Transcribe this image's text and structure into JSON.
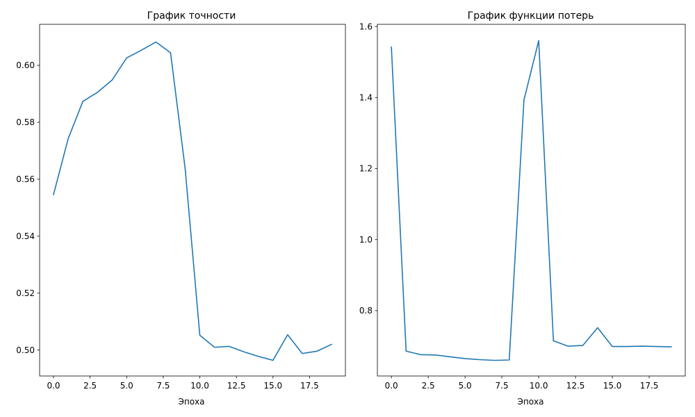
{
  "chart_data": [
    {
      "type": "line",
      "title": "График точности",
      "xlabel": "Эпоха",
      "ylabel": "",
      "xlim": [
        -0.95,
        19.95
      ],
      "ylim": [
        0.4909,
        0.6144
      ],
      "xticks": [
        0.0,
        2.5,
        5.0,
        7.5,
        10.0,
        12.5,
        15.0,
        17.5
      ],
      "yticks": [
        0.5,
        0.52,
        0.54,
        0.56,
        0.58,
        0.6
      ],
      "xtick_labels": [
        "0.0",
        "2.5",
        "5.0",
        "7.5",
        "10.0",
        "12.5",
        "15.0",
        "17.5"
      ],
      "ytick_labels": [
        "0.50",
        "0.52",
        "0.54",
        "0.56",
        "0.58",
        "0.60"
      ],
      "grid": false,
      "color": "#1f77b4",
      "x": [
        0,
        1,
        2,
        3,
        4,
        5,
        6,
        7,
        8,
        9,
        10,
        11,
        12,
        13,
        14,
        15,
        16,
        17,
        18,
        19
      ],
      "y": [
        0.5546,
        0.5742,
        0.5873,
        0.5905,
        0.5948,
        0.6026,
        0.6053,
        0.6082,
        0.6044,
        0.5636,
        0.5052,
        0.501,
        0.5013,
        0.4994,
        0.4978,
        0.4964,
        0.5054,
        0.4988,
        0.4996,
        0.502
      ]
    },
    {
      "type": "line",
      "title": "График функции потерь",
      "xlabel": "Эпоха",
      "ylabel": "",
      "xlim": [
        -0.95,
        19.95
      ],
      "ylim": [
        0.616,
        1.606
      ],
      "xticks": [
        0.0,
        2.5,
        5.0,
        7.5,
        10.0,
        12.5,
        15.0,
        17.5
      ],
      "yticks": [
        0.8,
        1.0,
        1.2,
        1.4,
        1.6
      ],
      "xtick_labels": [
        "0.0",
        "2.5",
        "5.0",
        "7.5",
        "10.0",
        "12.5",
        "15.0",
        "17.5"
      ],
      "ytick_labels": [
        "0.8",
        "1.0",
        "1.2",
        "1.4",
        "1.6"
      ],
      "grid": false,
      "color": "#1f77b4",
      "x": [
        0,
        1,
        2,
        3,
        4,
        5,
        6,
        7,
        8,
        9,
        10,
        11,
        12,
        13,
        14,
        15,
        16,
        17,
        18,
        19
      ],
      "y": [
        1.542,
        0.686,
        0.676,
        0.675,
        0.67,
        0.665,
        0.662,
        0.66,
        0.661,
        1.393,
        1.56,
        0.715,
        0.7,
        0.702,
        0.752,
        0.699,
        0.699,
        0.7,
        0.699,
        0.698
      ]
    }
  ]
}
